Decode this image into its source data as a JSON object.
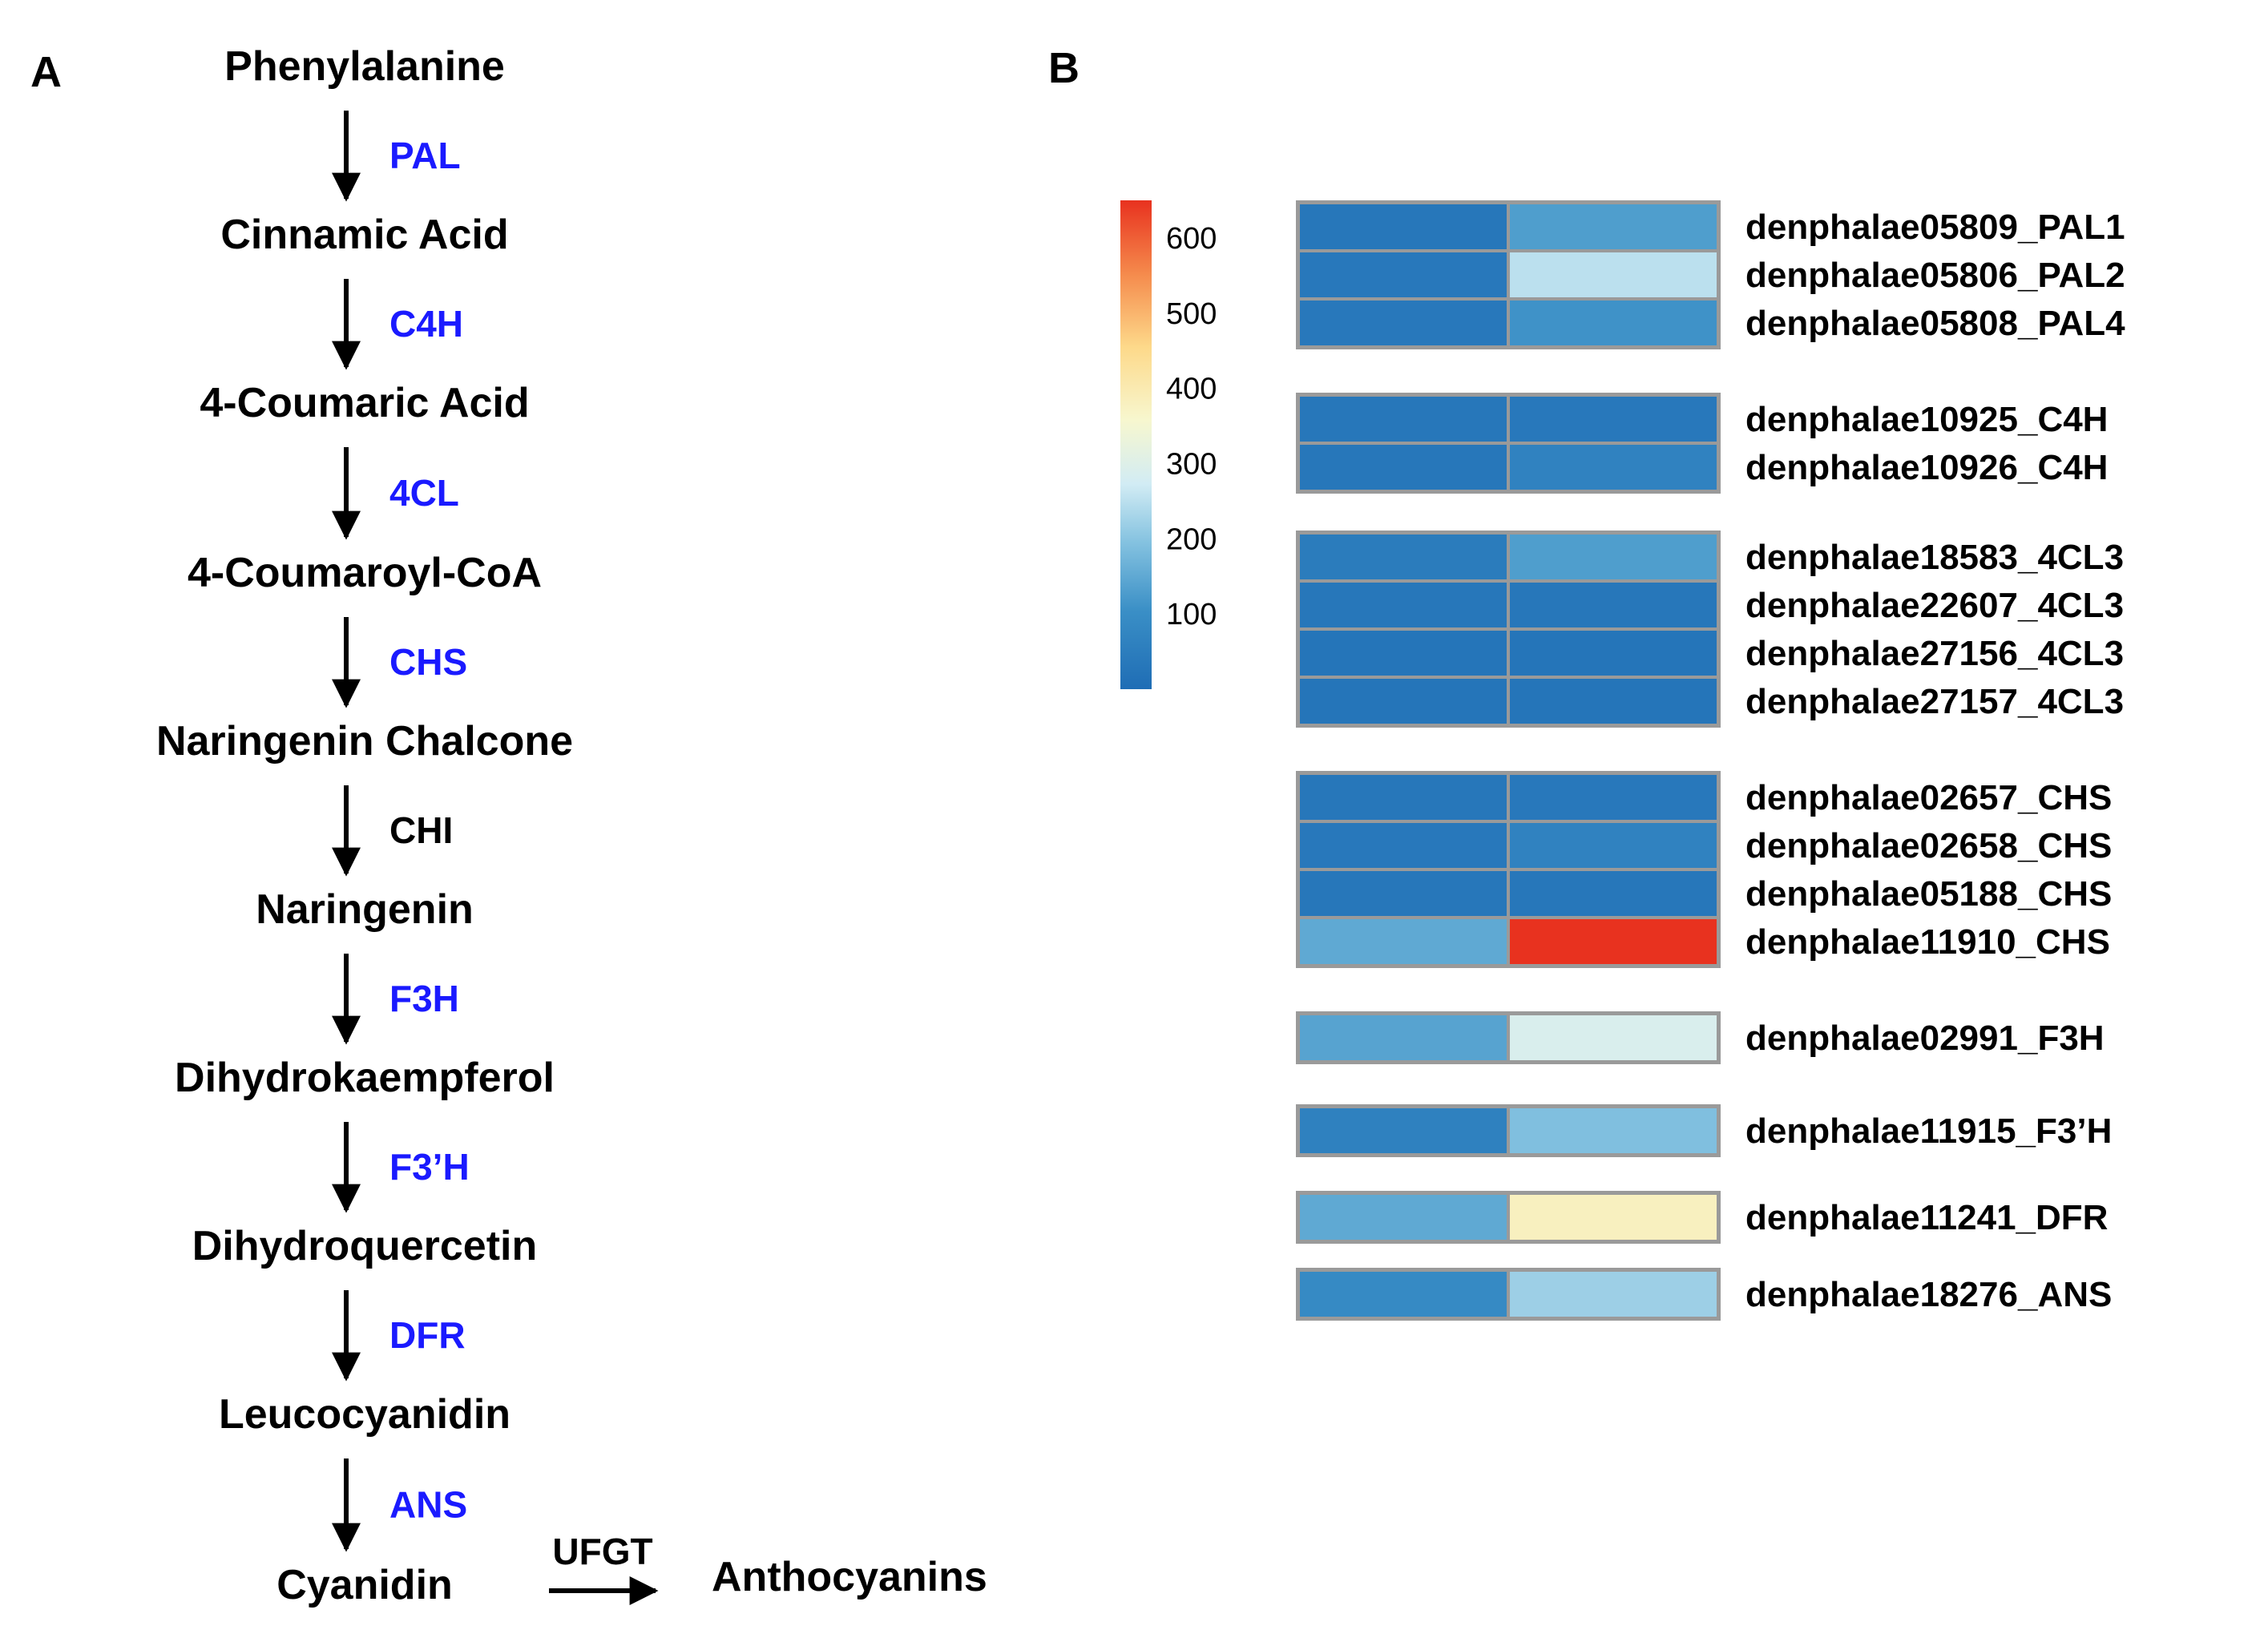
{
  "panels": {
    "a": "A",
    "b": "B"
  },
  "pathway": {
    "compounds": [
      "Phenylalanine",
      "Cinnamic Acid",
      "4-Coumaric Acid",
      "4-Coumaroyl-CoA",
      "Naringenin Chalcone",
      "Naringenin",
      "Dihydrokaempferol",
      "Dihydroquercetin",
      "Leucocyanidin",
      "Cyanidin"
    ],
    "enzymes": [
      {
        "label": "PAL",
        "color": "#1a1aff"
      },
      {
        "label": "C4H",
        "color": "#1a1aff"
      },
      {
        "label": "4CL",
        "color": "#1a1aff"
      },
      {
        "label": "CHS",
        "color": "#1a1aff"
      },
      {
        "label": "CHI",
        "color": "#000000"
      },
      {
        "label": "F3H",
        "color": "#1a1aff"
      },
      {
        "label": "F3’H",
        "color": "#1a1aff"
      },
      {
        "label": "DFR",
        "color": "#1a1aff"
      },
      {
        "label": "ANS",
        "color": "#1a1aff"
      }
    ],
    "final_step": {
      "enzyme": "UFGT",
      "product": "Anthocyanins"
    }
  },
  "chart_data": {
    "type": "heatmap",
    "colorbar": {
      "ticks": [
        100,
        200,
        300,
        400,
        500,
        600
      ],
      "range": [
        0,
        650
      ]
    },
    "columns": 2,
    "groups": [
      {
        "rows": [
          {
            "gene": "denphalae05809_PAL1",
            "values": [
              30,
              130
            ]
          },
          {
            "gene": "denphalae05806_PAL2",
            "values": [
              35,
              250
            ]
          },
          {
            "gene": "denphalae05808_PAL4",
            "values": [
              35,
              110
            ]
          }
        ]
      },
      {
        "rows": [
          {
            "gene": "denphalae10925_C4H",
            "values": [
              30,
              35
            ]
          },
          {
            "gene": "denphalae10926_C4H",
            "values": [
              30,
              65
            ]
          }
        ]
      },
      {
        "rows": [
          {
            "gene": "denphalae18583_4CL3",
            "values": [
              45,
              130
            ]
          },
          {
            "gene": "denphalae22607_4CL3",
            "values": [
              30,
              30
            ]
          },
          {
            "gene": "denphalae27156_4CL3",
            "values": [
              25,
              25
            ]
          },
          {
            "gene": "denphalae27157_4CL3",
            "values": [
              25,
              25
            ]
          }
        ]
      },
      {
        "rows": [
          {
            "gene": "denphalae02657_CHS",
            "values": [
              30,
              35
            ]
          },
          {
            "gene": "denphalae02658_CHS",
            "values": [
              35,
              65
            ]
          },
          {
            "gene": "denphalae05188_CHS",
            "values": [
              30,
              30
            ]
          },
          {
            "gene": "denphalae11910_CHS",
            "values": [
              150,
              650
            ]
          }
        ]
      },
      {
        "rows": [
          {
            "gene": "denphalae02991_F3H",
            "values": [
              140,
              290
            ]
          }
        ]
      },
      {
        "rows": [
          {
            "gene": "denphalae11915_F3’H",
            "values": [
              60,
              190
            ]
          }
        ]
      },
      {
        "rows": [
          {
            "gene": "denphalae11241_DFR",
            "values": [
              150,
              380
            ]
          }
        ]
      },
      {
        "rows": [
          {
            "gene": "denphalae18276_ANS",
            "values": [
              90,
              220
            ]
          }
        ]
      }
    ]
  }
}
